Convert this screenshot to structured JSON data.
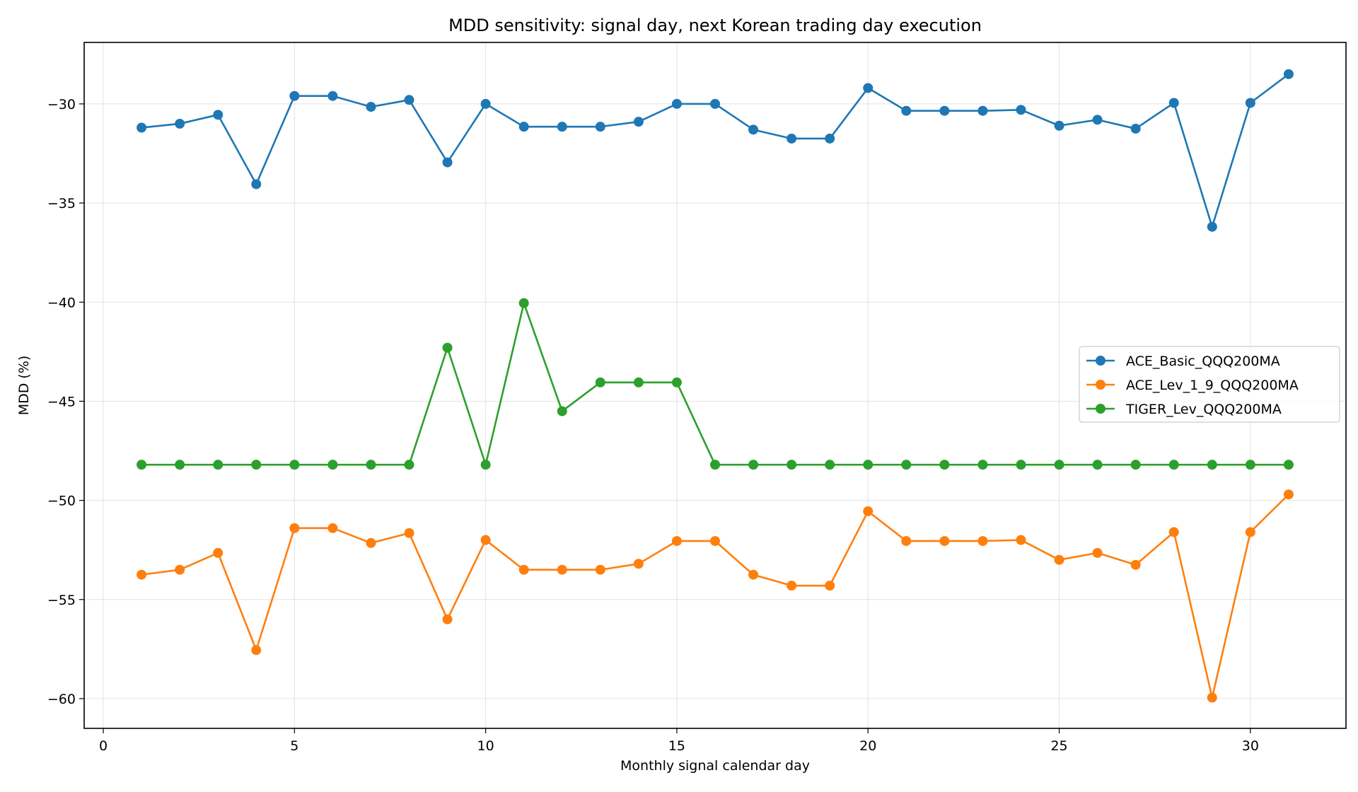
{
  "chart_data": {
    "type": "line",
    "title": "MDD sensitivity: signal day, next Korean trading day execution",
    "xlabel": "Monthly signal calendar day",
    "ylabel": "MDD (%)",
    "xlim": [
      -0.5,
      32.5
    ],
    "ylim": [
      -61.5,
      -26.9
    ],
    "xticks": [
      0,
      5,
      10,
      15,
      20,
      25,
      30
    ],
    "yticks": [
      -60,
      -55,
      -50,
      -45,
      -40,
      -35,
      -30
    ],
    "ytick_labels": [
      "−60",
      "−55",
      "−50",
      "−45",
      "−40",
      "−35",
      "−30"
    ],
    "grid": true,
    "legend_position": "center-right",
    "x": [
      1,
      2,
      3,
      4,
      5,
      6,
      7,
      8,
      9,
      10,
      11,
      12,
      13,
      14,
      15,
      16,
      17,
      18,
      19,
      20,
      21,
      22,
      23,
      24,
      25,
      26,
      27,
      28,
      29,
      30,
      31
    ],
    "series": [
      {
        "name": "ACE_Basic_QQQ200MA",
        "color": "#1f77b4",
        "values": [
          -31.2,
          -31.0,
          -30.55,
          -34.05,
          -29.6,
          -29.6,
          -30.15,
          -29.8,
          -32.95,
          -30.0,
          -31.15,
          -31.15,
          -31.15,
          -30.9,
          -30.0,
          -30.0,
          -31.3,
          -31.75,
          -31.75,
          -29.2,
          -30.35,
          -30.35,
          -30.35,
          -30.3,
          -31.1,
          -30.8,
          -31.25,
          -29.95,
          -36.2,
          -29.95,
          -28.5
        ]
      },
      {
        "name": "ACE_Lev_1_9_QQQ200MA",
        "color": "#ff7f0e",
        "values": [
          -53.75,
          -53.5,
          -52.65,
          -57.55,
          -51.4,
          -51.4,
          -52.15,
          -51.65,
          -56.0,
          -52.0,
          -53.5,
          -53.5,
          -53.5,
          -53.2,
          -52.05,
          -52.05,
          -53.75,
          -54.3,
          -54.3,
          -50.55,
          -52.05,
          -52.05,
          -52.05,
          -52.0,
          -53.0,
          -52.65,
          -53.25,
          -51.6,
          -59.95,
          -51.6,
          -49.7
        ]
      },
      {
        "name": "TIGER_Lev_QQQ200MA",
        "color": "#2ca02c",
        "values": [
          -48.2,
          -48.2,
          -48.2,
          -48.2,
          -48.2,
          -48.2,
          -48.2,
          -48.2,
          -42.3,
          -48.2,
          -40.05,
          -45.5,
          -44.05,
          -44.05,
          -44.05,
          -48.2,
          -48.2,
          -48.2,
          -48.2,
          -48.2,
          -48.2,
          -48.2,
          -48.2,
          -48.2,
          -48.2,
          -48.2,
          -48.2,
          -48.2,
          -48.2,
          -48.2,
          -48.2
        ]
      }
    ]
  }
}
